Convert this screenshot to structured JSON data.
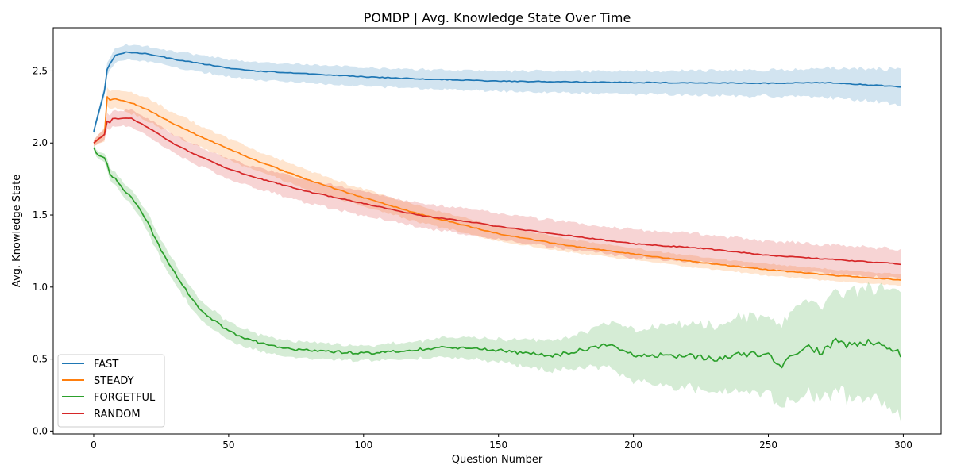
{
  "chart_data": {
    "type": "line",
    "title": "POMDP | Avg. Knowledge State Over Time",
    "xlabel": "Question Number",
    "ylabel": "Avg. Knowledge State",
    "xlim": [
      -15,
      314
    ],
    "ylim": [
      -0.02,
      2.8
    ],
    "xticks": [
      0,
      50,
      100,
      150,
      200,
      250,
      300
    ],
    "yticks": [
      0.0,
      0.5,
      1.0,
      1.5,
      2.0,
      2.5
    ],
    "xtick_labels": [
      "0",
      "50",
      "100",
      "150",
      "200",
      "250",
      "300"
    ],
    "ytick_labels": [
      "0.0",
      "0.5",
      "1.0",
      "1.5",
      "2.0",
      "2.5"
    ],
    "grid": false,
    "legend_position": "lower-left",
    "x_range": [
      0,
      299
    ],
    "series": [
      {
        "name": "FAST",
        "color": "#1f77b4",
        "mean_keyframes": [
          [
            0,
            2.08
          ],
          [
            4,
            2.36
          ],
          [
            5,
            2.51
          ],
          [
            6,
            2.55
          ],
          [
            8,
            2.61
          ],
          [
            10,
            2.62
          ],
          [
            12,
            2.63
          ],
          [
            20,
            2.62
          ],
          [
            25,
            2.6
          ],
          [
            30,
            2.58
          ],
          [
            40,
            2.55
          ],
          [
            50,
            2.52
          ],
          [
            60,
            2.5
          ],
          [
            80,
            2.48
          ],
          [
            100,
            2.46
          ],
          [
            120,
            2.445
          ],
          [
            150,
            2.43
          ],
          [
            200,
            2.42
          ],
          [
            250,
            2.415
          ],
          [
            270,
            2.42
          ],
          [
            290,
            2.4
          ],
          [
            299,
            2.39
          ]
        ],
        "band_keyframes": [
          [
            0,
            0.02
          ],
          [
            4,
            0.04
          ],
          [
            8,
            0.05
          ],
          [
            50,
            0.06
          ],
          [
            150,
            0.07
          ],
          [
            250,
            0.09
          ],
          [
            299,
            0.12
          ]
        ]
      },
      {
        "name": "STEADY",
        "color": "#ff7f0e",
        "mean_keyframes": [
          [
            0,
            2.0
          ],
          [
            4,
            2.06
          ],
          [
            5,
            2.32
          ],
          [
            6,
            2.3
          ],
          [
            8,
            2.31
          ],
          [
            15,
            2.27
          ],
          [
            20,
            2.23
          ],
          [
            30,
            2.13
          ],
          [
            40,
            2.04
          ],
          [
            50,
            1.96
          ],
          [
            60,
            1.88
          ],
          [
            70,
            1.81
          ],
          [
            80,
            1.74
          ],
          [
            100,
            1.62
          ],
          [
            120,
            1.51
          ],
          [
            150,
            1.37
          ],
          [
            175,
            1.29
          ],
          [
            200,
            1.23
          ],
          [
            225,
            1.17
          ],
          [
            250,
            1.12
          ],
          [
            275,
            1.08
          ],
          [
            299,
            1.05
          ]
        ],
        "band_keyframes": [
          [
            0,
            0.02
          ],
          [
            5,
            0.06
          ],
          [
            20,
            0.08
          ],
          [
            100,
            0.06
          ],
          [
            200,
            0.04
          ],
          [
            299,
            0.04
          ]
        ]
      },
      {
        "name": "FORGETFUL",
        "color": "#2ca02c",
        "mean_keyframes": [
          [
            0,
            1.97
          ],
          [
            1,
            1.93
          ],
          [
            4,
            1.89
          ],
          [
            5,
            1.85
          ],
          [
            6,
            1.78
          ],
          [
            8,
            1.75
          ],
          [
            10,
            1.7
          ],
          [
            15,
            1.6
          ],
          [
            20,
            1.45
          ],
          [
            25,
            1.25
          ],
          [
            30,
            1.1
          ],
          [
            35,
            0.96
          ],
          [
            40,
            0.83
          ],
          [
            45,
            0.76
          ],
          [
            50,
            0.69
          ],
          [
            55,
            0.65
          ],
          [
            60,
            0.62
          ],
          [
            70,
            0.57
          ],
          [
            80,
            0.56
          ],
          [
            100,
            0.54
          ],
          [
            110,
            0.55
          ],
          [
            130,
            0.58
          ],
          [
            150,
            0.56
          ],
          [
            170,
            0.52
          ],
          [
            180,
            0.56
          ],
          [
            190,
            0.6
          ],
          [
            200,
            0.53
          ],
          [
            220,
            0.52
          ],
          [
            230,
            0.5
          ],
          [
            240,
            0.54
          ],
          [
            250,
            0.52
          ],
          [
            255,
            0.46
          ],
          [
            260,
            0.55
          ],
          [
            265,
            0.58
          ],
          [
            270,
            0.55
          ],
          [
            275,
            0.63
          ],
          [
            280,
            0.59
          ],
          [
            285,
            0.62
          ],
          [
            290,
            0.62
          ],
          [
            295,
            0.56
          ],
          [
            299,
            0.54
          ]
        ],
        "band_keyframes": [
          [
            0,
            0.02
          ],
          [
            10,
            0.05
          ],
          [
            30,
            0.07
          ],
          [
            60,
            0.06
          ],
          [
            100,
            0.05
          ],
          [
            150,
            0.08
          ],
          [
            180,
            0.12
          ],
          [
            200,
            0.18
          ],
          [
            230,
            0.24
          ],
          [
            260,
            0.3
          ],
          [
            280,
            0.36
          ],
          [
            299,
            0.42
          ]
        ]
      },
      {
        "name": "RANDOM",
        "color": "#d62728",
        "mean_keyframes": [
          [
            0,
            2.0
          ],
          [
            4,
            2.06
          ],
          [
            5,
            2.15
          ],
          [
            6,
            2.14
          ],
          [
            7,
            2.17
          ],
          [
            10,
            2.17
          ],
          [
            14,
            2.17
          ],
          [
            20,
            2.11
          ],
          [
            30,
            1.99
          ],
          [
            40,
            1.9
          ],
          [
            50,
            1.82
          ],
          [
            60,
            1.76
          ],
          [
            70,
            1.71
          ],
          [
            80,
            1.66
          ],
          [
            100,
            1.58
          ],
          [
            120,
            1.5
          ],
          [
            140,
            1.45
          ],
          [
            150,
            1.42
          ],
          [
            175,
            1.36
          ],
          [
            200,
            1.3
          ],
          [
            225,
            1.27
          ],
          [
            250,
            1.22
          ],
          [
            275,
            1.19
          ],
          [
            299,
            1.16
          ]
        ],
        "band_keyframes": [
          [
            0,
            0.02
          ],
          [
            5,
            0.05
          ],
          [
            20,
            0.06
          ],
          [
            80,
            0.08
          ],
          [
            150,
            0.09
          ],
          [
            220,
            0.1
          ],
          [
            299,
            0.1
          ]
        ]
      }
    ]
  }
}
